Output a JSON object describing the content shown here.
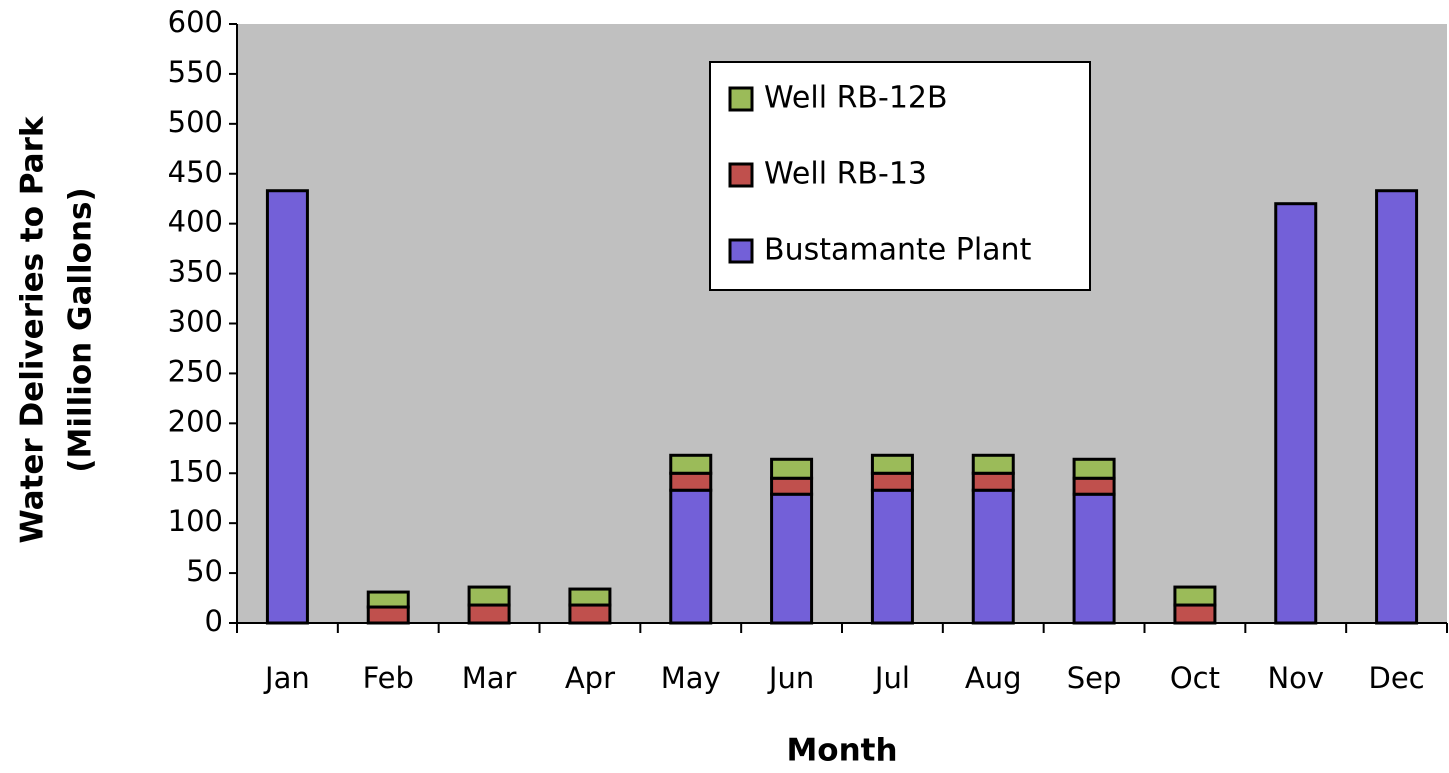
{
  "chart_data": {
    "type": "stacked_bar",
    "xlabel": "Month",
    "ylabel": [
      "Water Deliveries to Park",
      "(Million Gallons)"
    ],
    "categories": [
      "Jan",
      "Feb",
      "Mar",
      "Apr",
      "May",
      "Jun",
      "Jul",
      "Aug",
      "Sep",
      "Oct",
      "Nov",
      "Dec"
    ],
    "series": [
      {
        "name": "Bustamante Plant",
        "color": "#7360d8",
        "values": [
          433,
          0,
          0,
          0,
          133,
          129,
          133,
          133,
          129,
          0,
          420,
          433
        ]
      },
      {
        "name": "Well RB-13",
        "color": "#c0504d",
        "values": [
          0,
          16,
          18,
          18,
          17,
          16,
          17,
          17,
          16,
          18,
          0,
          0
        ]
      },
      {
        "name": "Well RB-12B",
        "color": "#9bbb59",
        "values": [
          0,
          15,
          18,
          16,
          18,
          19,
          18,
          18,
          19,
          18,
          0,
          0
        ]
      }
    ],
    "ylim": [
      0,
      600
    ],
    "yticks": [
      0,
      50,
      100,
      150,
      200,
      250,
      300,
      350,
      400,
      450,
      500,
      550,
      600
    ],
    "plot_background": "#c0c0c0"
  }
}
